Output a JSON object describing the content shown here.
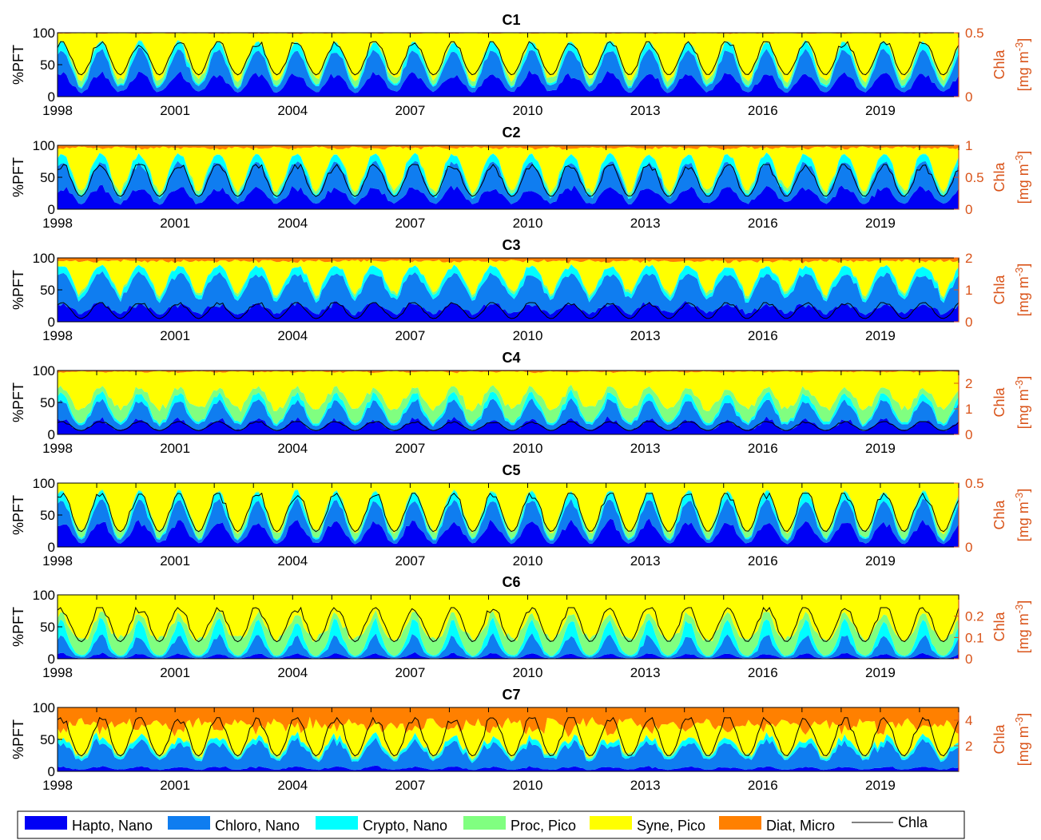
{
  "figure": {
    "y_label": "%PFT",
    "right_label_line1": "Chla",
    "right_label_line2": "[mg m",
    "right_label_sup": "-3",
    "right_label_end": "]"
  },
  "colors": {
    "hapto": "#0000f5",
    "chloro": "#0f7df0",
    "crypto": "#00ffff",
    "proc": "#80ff80",
    "syne": "#ffff00",
    "diat": "#ff8000",
    "chla": "#000000",
    "right_axis": "#d95319"
  },
  "legend": [
    {
      "key": "hapto",
      "label": "Hapto, Nano"
    },
    {
      "key": "chloro",
      "label": "Chloro, Nano"
    },
    {
      "key": "crypto",
      "label": "Crypto, Nano"
    },
    {
      "key": "proc",
      "label": "Proc, Pico"
    },
    {
      "key": "syne",
      "label": "Syne, Pico"
    },
    {
      "key": "diat",
      "label": "Diat, Micro"
    },
    {
      "key": "chla",
      "label": "Chla"
    }
  ],
  "chart_data": [
    {
      "type": "area",
      "title": "C1",
      "x_range": [
        "1998-01-01",
        "2020-12-31"
      ],
      "xticks": [
        "1998",
        "2001",
        "2004",
        "2007",
        "2010",
        "2013",
        "2016",
        "2019"
      ],
      "ylim": [
        0,
        100
      ],
      "yticks": [
        0,
        50,
        100
      ],
      "ylim_right": [
        0,
        0.5
      ],
      "yticks_right": [
        "0",
        "0.5"
      ],
      "series_mean_percent": {
        "hapto": 22,
        "chloro": 23,
        "crypto": 8,
        "proc": 5,
        "syne": 41,
        "diat": 1
      },
      "seasonal_amplitude": 0.7,
      "chla_range": [
        0.17,
        0.43
      ]
    },
    {
      "type": "area",
      "title": "C2",
      "x_range": [
        "1998-01-01",
        "2020-12-31"
      ],
      "xticks": [
        "1998",
        "2001",
        "2004",
        "2007",
        "2010",
        "2013",
        "2016",
        "2019"
      ],
      "ylim": [
        0,
        100
      ],
      "yticks": [
        0,
        50,
        100
      ],
      "ylim_right": [
        0,
        1
      ],
      "yticks_right": [
        "0",
        "0.5",
        "1"
      ],
      "series_mean_percent": {
        "hapto": 23,
        "chloro": 28,
        "crypto": 9,
        "proc": 3,
        "syne": 33,
        "diat": 4
      },
      "seasonal_amplitude": 0.7,
      "chla_range": [
        0.2,
        0.7
      ]
    },
    {
      "type": "area",
      "title": "C3",
      "x_range": [
        "1998-01-01",
        "2020-12-31"
      ],
      "xticks": [
        "1998",
        "2001",
        "2004",
        "2007",
        "2010",
        "2013",
        "2016",
        "2019"
      ],
      "ylim": [
        0,
        100
      ],
      "yticks": [
        0,
        50,
        100
      ],
      "ylim_right": [
        0,
        2
      ],
      "yticks_right": [
        "0",
        "1",
        "2"
      ],
      "series_mean_percent": {
        "hapto": 22,
        "chloro": 38,
        "crypto": 10,
        "proc": 2,
        "syne": 23,
        "diat": 5
      },
      "seasonal_amplitude": 0.6,
      "chla_range": [
        0.1,
        0.6
      ]
    },
    {
      "type": "area",
      "title": "C4",
      "x_range": [
        "1998-01-01",
        "2020-12-31"
      ],
      "xticks": [
        "1998",
        "2001",
        "2004",
        "2007",
        "2010",
        "2013",
        "2016",
        "2019"
      ],
      "ylim": [
        0,
        100
      ],
      "yticks": [
        0,
        50,
        100
      ],
      "ylim_right": [
        0,
        2.5
      ],
      "yticks_right": [
        "0",
        "1",
        "2"
      ],
      "series_mean_percent": {
        "hapto": 14,
        "chloro": 18,
        "crypto": 7,
        "proc": 16,
        "syne": 43,
        "diat": 2
      },
      "seasonal_amplitude": 0.5,
      "chla_range": [
        0.15,
        0.5
      ]
    },
    {
      "type": "area",
      "title": "C5",
      "x_range": [
        "1998-01-01",
        "2020-12-31"
      ],
      "xticks": [
        "1998",
        "2001",
        "2004",
        "2007",
        "2010",
        "2013",
        "2016",
        "2019"
      ],
      "ylim": [
        0,
        100
      ],
      "yticks": [
        0,
        50,
        100
      ],
      "ylim_right": [
        0,
        0.5
      ],
      "yticks_right": [
        "0",
        "0.5"
      ],
      "series_mean_percent": {
        "hapto": 22,
        "chloro": 20,
        "crypto": 8,
        "proc": 6,
        "syne": 44,
        "diat": 0
      },
      "seasonal_amplitude": 0.75,
      "chla_range": [
        0.12,
        0.42
      ]
    },
    {
      "type": "area",
      "title": "C6",
      "x_range": [
        "1998-01-01",
        "2020-12-31"
      ],
      "xticks": [
        "1998",
        "2001",
        "2004",
        "2007",
        "2010",
        "2013",
        "2016",
        "2019"
      ],
      "ylim": [
        0,
        100
      ],
      "yticks": [
        0,
        50,
        100
      ],
      "ylim_right": [
        0,
        0.3
      ],
      "yticks_right": [
        "0",
        "0.1",
        "0.2"
      ],
      "series_mean_percent": {
        "hapto": 3,
        "chloro": 10,
        "crypto": 9,
        "proc": 22,
        "syne": 56,
        "diat": 0
      },
      "seasonal_amplitude": 0.7,
      "chla_range": [
        0.08,
        0.24
      ]
    },
    {
      "type": "area",
      "title": "C7",
      "x_range": [
        "1998-01-01",
        "2020-12-31"
      ],
      "xticks": [
        "1998",
        "2001",
        "2004",
        "2007",
        "2010",
        "2013",
        "2016",
        "2019"
      ],
      "ylim": [
        0,
        100
      ],
      "yticks": [
        0,
        50,
        100
      ],
      "ylim_right": [
        0,
        5
      ],
      "yticks_right": [
        "2",
        "4"
      ],
      "series_mean_percent": {
        "hapto": 5,
        "chloro": 28,
        "crypto": 6,
        "proc": 2,
        "syne": 30,
        "diat": 29
      },
      "seasonal_amplitude": 0.55,
      "chla_range": [
        1.2,
        4.2
      ]
    }
  ]
}
